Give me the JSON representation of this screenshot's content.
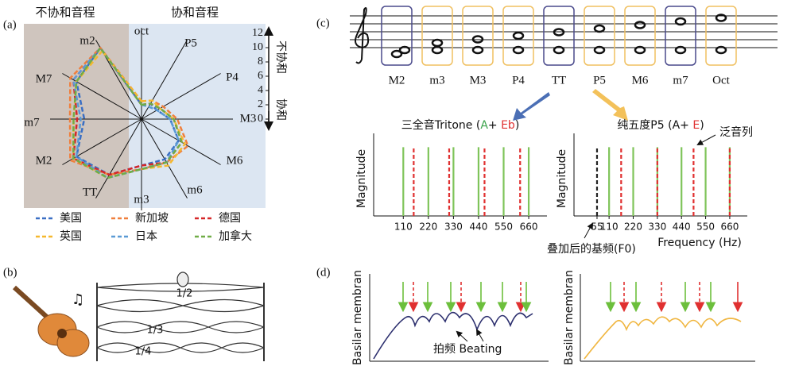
{
  "panels": {
    "a": {
      "label": "(a)",
      "dissonant": "不协和音程",
      "consonant": "协和音程",
      "scale_high": "不协和",
      "scale_low": "协和"
    },
    "b": {
      "label": "(b)",
      "modes": [
        "1/2",
        "1/3",
        "1/4"
      ]
    },
    "c": {
      "label": "(c)",
      "intervals": [
        {
          "label": "M2",
          "color": "#4a4a8c"
        },
        {
          "label": "m3",
          "color": "#f0c060"
        },
        {
          "label": "M3",
          "color": "#f0c060"
        },
        {
          "label": "P4",
          "color": "#f0c060"
        },
        {
          "label": "TT",
          "color": "#4a4a8c"
        },
        {
          "label": "P5",
          "color": "#f0c060"
        },
        {
          "label": "M6",
          "color": "#f0c060"
        },
        {
          "label": "m7",
          "color": "#4a4a8c"
        },
        {
          "label": "Oct",
          "color": "#f0c060"
        }
      ],
      "overtones": "泛音列",
      "f0": "叠加后的基频(F0)"
    },
    "d": {
      "label": "(d)",
      "ylabel": "Basilar membran",
      "beating": "拍频 Beating"
    }
  },
  "chart_data": [
    {
      "type": "radar",
      "categories": [
        "oct",
        "P5",
        "P4",
        "M3",
        "M6",
        "m6",
        "m3",
        "TT",
        "M2",
        "m7",
        "M7",
        "m2"
      ],
      "ylim": [
        0,
        12
      ],
      "yticks": [
        0,
        2,
        4,
        6,
        8,
        10,
        12
      ],
      "series": [
        {
          "name": "美国",
          "color": "#3a6fc4",
          "values": [
            2,
            2.5,
            2.5,
            4,
            6,
            6.5,
            6.5,
            9,
            10.5,
            8,
            10.5,
            11.5
          ]
        },
        {
          "name": "新加坡",
          "color": "#f07f3c",
          "values": [
            2.5,
            3,
            3.5,
            5,
            7.5,
            7,
            7,
            9,
            11.5,
            10,
            11.5,
            11.5
          ]
        },
        {
          "name": "德国",
          "color": "#d62728",
          "values": [
            2,
            2.5,
            3,
            4.5,
            6.5,
            7,
            6.5,
            9,
            11,
            9,
            11,
            11.5
          ]
        },
        {
          "name": "英国",
          "color": "#f5b82e",
          "values": [
            2.5,
            3,
            3,
            4.5,
            7,
            7.5,
            7,
            9.5,
            11,
            9.5,
            10.5,
            11
          ]
        },
        {
          "name": "日本",
          "color": "#5b9bd5",
          "values": [
            2,
            2,
            2.5,
            4,
            6,
            7,
            7,
            9.5,
            10.5,
            8.5,
            11,
            11.5
          ]
        },
        {
          "name": "加拿大",
          "color": "#70ad47",
          "values": [
            2,
            2.5,
            3,
            4.5,
            6.5,
            7,
            7,
            9.5,
            11,
            9.5,
            10.5,
            11.5
          ]
        }
      ]
    },
    {
      "type": "stem",
      "title_parts": [
        "三全音Tritone (",
        "A",
        "+ ",
        "Eb",
        ")"
      ],
      "ylabel": "Magnitude",
      "xlim": [
        -20,
        740
      ],
      "xticks": [
        110,
        220,
        330,
        440,
        550,
        660
      ],
      "ylim": [
        0,
        1.2
      ],
      "series": [
        {
          "color": "#7fc45a",
          "line_style": "solid",
          "x": [
            110,
            220,
            330,
            440,
            550,
            660
          ],
          "values": [
            1,
            1,
            1,
            1,
            1,
            1
          ]
        },
        {
          "color": "#e03030",
          "line_style": "dashed",
          "x": [
            155.6,
            311.1,
            466.2,
            622.3
          ],
          "values": [
            1,
            1,
            1,
            1
          ]
        }
      ]
    },
    {
      "type": "stem",
      "title_parts": [
        "纯五度P5 (A+ ",
        "E",
        ")"
      ],
      "ylabel": "Magnitude",
      "xlabel": "Frequency (Hz)",
      "xlim": [
        -50,
        740
      ],
      "xticks": [
        55,
        110,
        220,
        330,
        440,
        550,
        660
      ],
      "ylim": [
        0,
        1.2
      ],
      "series": [
        {
          "color": "#7fc45a",
          "line_style": "solid",
          "x": [
            110,
            220,
            330,
            440,
            550,
            660
          ],
          "values": [
            1,
            1,
            1,
            1,
            1,
            1
          ]
        },
        {
          "color": "#e03030",
          "line_style": "dashed",
          "x": [
            165,
            330,
            495,
            660
          ],
          "values": [
            1,
            1,
            1,
            1
          ]
        },
        {
          "color": "#222222",
          "line_style": "dashed",
          "x": [
            55
          ],
          "values": [
            1
          ]
        }
      ]
    }
  ]
}
